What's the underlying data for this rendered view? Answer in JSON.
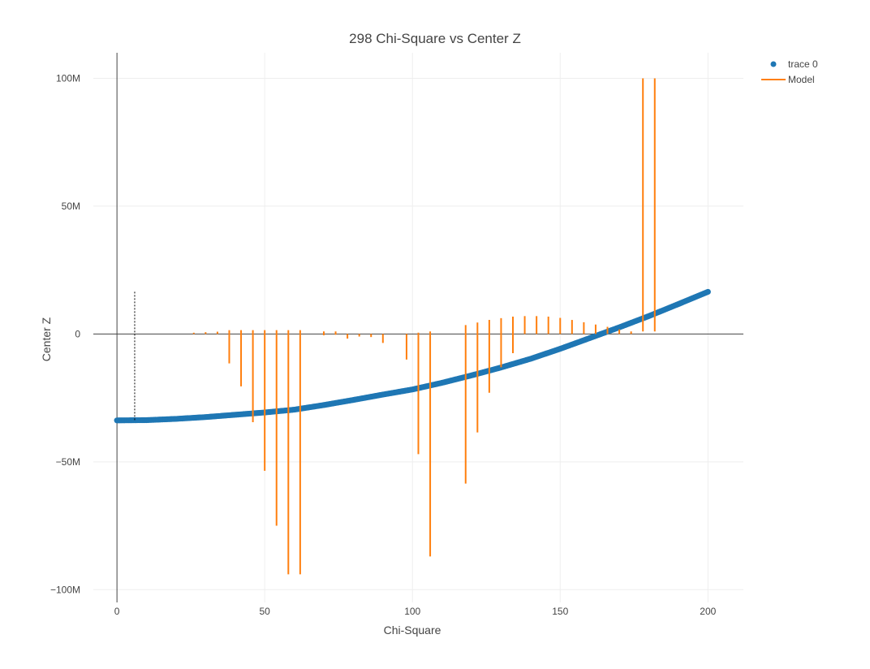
{
  "chart_data": {
    "type": "scatter",
    "title": "298 Chi-Square vs Center Z",
    "xlabel": "Chi-Square",
    "ylabel": "Center Z",
    "xlim": [
      -8,
      212
    ],
    "ylim": [
      -105000000,
      110000000
    ],
    "x_ticks": [
      0,
      50,
      100,
      150,
      200
    ],
    "x_tick_labels": [
      "0",
      "50",
      "100",
      "150",
      "200"
    ],
    "y_ticks": [
      -100000000,
      -50000000,
      0,
      50000000,
      100000000
    ],
    "y_tick_labels": [
      "−100M",
      "−50M",
      "0",
      "50M",
      "100M"
    ],
    "grid": true,
    "legend_position": "top-right",
    "colors": {
      "trace0": "#1f77b4",
      "model": "#ff7f0e",
      "axis": "#444444",
      "marker_line": "#000000"
    },
    "series": [
      {
        "name": "trace 0",
        "kind": "markers",
        "color": "#1f77b4",
        "x_range": [
          0,
          200
        ],
        "curve_x": [
          0,
          10,
          20,
          30,
          40,
          50,
          60,
          70,
          80,
          90,
          100,
          110,
          120,
          130,
          140,
          150,
          160,
          170,
          180,
          190,
          200
        ],
        "curve_y": [
          -33800000,
          -33700000,
          -33200000,
          -32500000,
          -31600000,
          -30700000,
          -29600000,
          -27800000,
          -25800000,
          -23700000,
          -21700000,
          -19100000,
          -16200000,
          -13100000,
          -9700000,
          -5800000,
          -1600000,
          2600000,
          7000000,
          11700000,
          16500000
        ]
      },
      {
        "name": "Model",
        "kind": "lines",
        "color": "#ff7f0e",
        "segments": [
          {
            "x": 26,
            "y0": 0,
            "y1": 500000
          },
          {
            "x": 30,
            "y0": 0,
            "y1": 700000
          },
          {
            "x": 34,
            "y0": 0,
            "y1": 900000
          },
          {
            "x": 38,
            "y0": 1500000,
            "y1": -11500000
          },
          {
            "x": 42,
            "y0": 1500000,
            "y1": -20500000
          },
          {
            "x": 46,
            "y0": 1500000,
            "y1": -34500000
          },
          {
            "x": 50,
            "y0": 1500000,
            "y1": -53500000
          },
          {
            "x": 54,
            "y0": 1500000,
            "y1": -75000000
          },
          {
            "x": 58,
            "y0": 1500000,
            "y1": -94000000
          },
          {
            "x": 62,
            "y0": 1500000,
            "y1": -94000000
          },
          {
            "x": 70,
            "y0": 1000000,
            "y1": -500000
          },
          {
            "x": 74,
            "y0": 1000000,
            "y1": -300000
          },
          {
            "x": 78,
            "y0": 0,
            "y1": -1800000
          },
          {
            "x": 82,
            "y0": 0,
            "y1": -1000000
          },
          {
            "x": 86,
            "y0": 0,
            "y1": -1200000
          },
          {
            "x": 90,
            "y0": 0,
            "y1": -3500000
          },
          {
            "x": 98,
            "y0": 0,
            "y1": -10000000
          },
          {
            "x": 102,
            "y0": 500000,
            "y1": -47000000
          },
          {
            "x": 106,
            "y0": 1000000,
            "y1": -87000000
          },
          {
            "x": 118,
            "y0": 3500000,
            "y1": -58500000
          },
          {
            "x": 122,
            "y0": 4500000,
            "y1": -38500000
          },
          {
            "x": 126,
            "y0": 5500000,
            "y1": -23000000
          },
          {
            "x": 130,
            "y0": 6200000,
            "y1": -13000000
          },
          {
            "x": 134,
            "y0": 6800000,
            "y1": -7500000
          },
          {
            "x": 138,
            "y0": 7000000,
            "y1": 0
          },
          {
            "x": 142,
            "y0": 7000000,
            "y1": 0
          },
          {
            "x": 146,
            "y0": 6800000,
            "y1": 0
          },
          {
            "x": 150,
            "y0": 6300000,
            "y1": 0
          },
          {
            "x": 154,
            "y0": 5500000,
            "y1": 0
          },
          {
            "x": 158,
            "y0": 4600000,
            "y1": 0
          },
          {
            "x": 162,
            "y0": 3700000,
            "y1": 0
          },
          {
            "x": 166,
            "y0": 2800000,
            "y1": 0
          },
          {
            "x": 170,
            "y0": 1800000,
            "y1": 0
          },
          {
            "x": 174,
            "y0": 1000000,
            "y1": 0
          },
          {
            "x": 178,
            "y0": 100000000,
            "y1": 1000000
          },
          {
            "x": 182,
            "y0": 100000000,
            "y1": 1000000
          }
        ]
      }
    ],
    "annotation_line": {
      "x": 6,
      "y0": -33800000,
      "y1": 16500000,
      "style": "dotted"
    }
  }
}
